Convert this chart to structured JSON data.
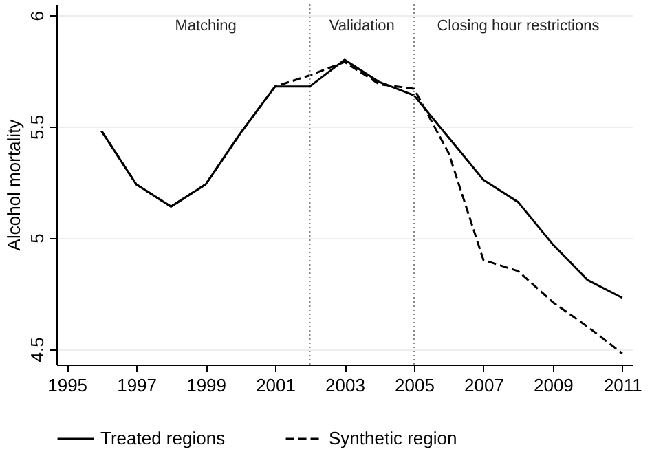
{
  "chart_data": {
    "type": "line",
    "ylabel": "Alcohol mortality",
    "x": [
      1996,
      1997,
      1998,
      1999,
      2000,
      2001,
      2002,
      2003,
      2004,
      2005,
      2006,
      2007,
      2008,
      2009,
      2010,
      2011
    ],
    "series": [
      {
        "name": "Treated regions",
        "color": "#000000",
        "line_style": "solid",
        "values": [
          5.48,
          5.24,
          5.14,
          5.24,
          5.47,
          5.68,
          5.68,
          5.8,
          5.7,
          5.64,
          5.45,
          5.26,
          5.16,
          4.97,
          4.81,
          4.73
        ]
      },
      {
        "name": "Synthetic region",
        "color": "#000000",
        "line_style": "dashed",
        "values": [
          5.48,
          5.24,
          5.14,
          5.24,
          5.47,
          5.68,
          5.73,
          5.79,
          5.69,
          5.67,
          5.38,
          4.9,
          4.85,
          4.71,
          4.6,
          4.48
        ]
      }
    ],
    "xlim": [
      1994.7,
      2011.3
    ],
    "xticks": [
      1995,
      1997,
      1999,
      2001,
      2003,
      2005,
      2007,
      2009,
      2011
    ],
    "ylim": [
      4.43,
      6.05
    ],
    "yticks": [
      4.5,
      5,
      5.5,
      6
    ],
    "ref_lines": [
      {
        "axis": "x",
        "value": 2002,
        "color": "#888888",
        "line_style": "dotted"
      },
      {
        "axis": "x",
        "value": 2005,
        "color": "#888888",
        "line_style": "dotted"
      }
    ],
    "annotations": [
      "Matching",
      "Validation",
      "Closing hour restrictions"
    ],
    "grid": "y",
    "legend": "bottom"
  }
}
